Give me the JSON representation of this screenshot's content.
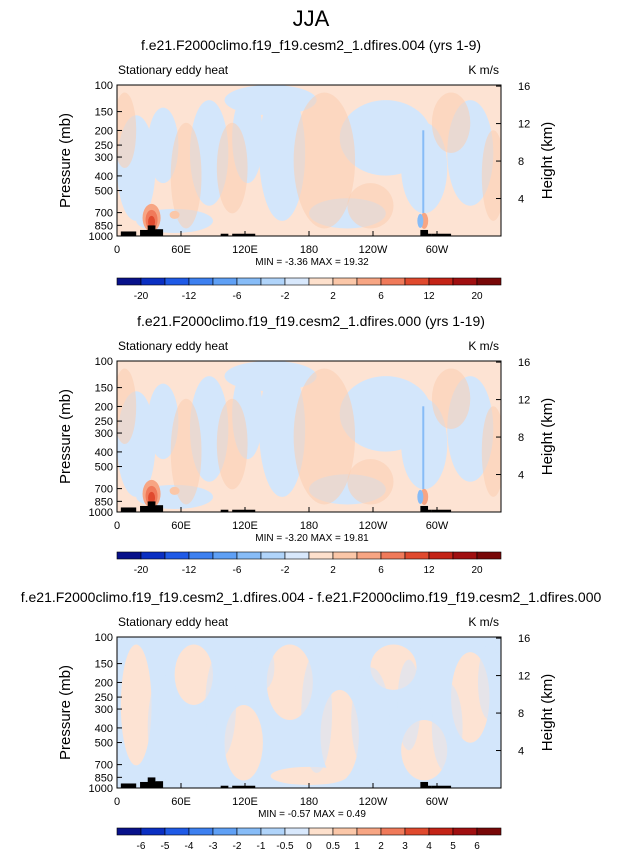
{
  "title": "JJA",
  "panels": [
    {
      "title": "f.e21.F2000climo.f19_f19.cesm2_1.dfires.004 (yrs 1-9)",
      "left_label": "Stationary eddy heat",
      "right_label": "K m/s",
      "stats": "MIN =  -3.36  MAX =  19.32",
      "colorbar_labels": [
        "-20",
        "-12",
        "-6",
        "-2",
        "2",
        "6",
        "12",
        "20"
      ],
      "colorbar_colors": [
        "#08118a",
        "#0a2fc2",
        "#1f5ae6",
        "#3d80f0",
        "#5fa0f5",
        "#87bcf7",
        "#b0d4fa",
        "#d8e8fc",
        "#fde0cc",
        "#fbc7a8",
        "#f7a583",
        "#f07a5a",
        "#e04a2e",
        "#c42417",
        "#a00f10",
        "#780808"
      ]
    },
    {
      "title": "f.e21.F2000climo.f19_f19.cesm2_1.dfires.000 (yrs 1-19)",
      "left_label": "Stationary eddy heat",
      "right_label": "K m/s",
      "stats": "MIN =  -3.20  MAX =  19.81",
      "colorbar_labels": [
        "-20",
        "-12",
        "-6",
        "-2",
        "2",
        "6",
        "12",
        "20"
      ],
      "colorbar_colors": [
        "#08118a",
        "#0a2fc2",
        "#1f5ae6",
        "#3d80f0",
        "#5fa0f5",
        "#87bcf7",
        "#b0d4fa",
        "#d8e8fc",
        "#fde0cc",
        "#fbc7a8",
        "#f7a583",
        "#f07a5a",
        "#e04a2e",
        "#c42417",
        "#a00f10",
        "#780808"
      ]
    },
    {
      "title": "f.e21.F2000climo.f19_f19.cesm2_1.dfires.004 - f.e21.F2000climo.f19_f19.cesm2_1.dfires.000",
      "left_label": "Stationary eddy heat",
      "right_label": "K m/s",
      "stats": "MIN =  -0.57  MAX =   0.49",
      "colorbar_labels": [
        "-6",
        "-5",
        "-4",
        "-3",
        "-2",
        "-1",
        "-0.5",
        "0",
        "0.5",
        "1",
        "2",
        "3",
        "4",
        "5",
        "6"
      ],
      "colorbar_colors": [
        "#08118a",
        "#0a2fc2",
        "#1f5ae6",
        "#3d80f0",
        "#5fa0f5",
        "#87bcf7",
        "#b0d4fa",
        "#d8e8fc",
        "#fde0cc",
        "#fbc7a8",
        "#f7a583",
        "#f07a5a",
        "#e04a2e",
        "#c42417",
        "#a00f10",
        "#780808"
      ]
    }
  ],
  "chart_data": [
    {
      "type": "heatmap",
      "title": "f.e21.F2000climo.f19_f19.cesm2_1.dfires.004 (yrs 1-9)",
      "ylabel": "Pressure (mb)",
      "y2label": "Height (km)",
      "x_ticks": [
        "0",
        "60E",
        "120E",
        "180",
        "120W",
        "60W"
      ],
      "y_ticks": [
        "100",
        "150",
        "200",
        "250",
        "300",
        "400",
        "500",
        "700",
        "850",
        "1000"
      ],
      "y2_ticks": [
        "16",
        "12",
        "8",
        "4"
      ],
      "ylim": [
        1000,
        100
      ],
      "min": -3.36,
      "max": 19.32,
      "units": "K m/s"
    },
    {
      "type": "heatmap",
      "title": "f.e21.F2000climo.f19_f19.cesm2_1.dfires.000 (yrs 1-19)",
      "ylabel": "Pressure (mb)",
      "y2label": "Height (km)",
      "x_ticks": [
        "0",
        "60E",
        "120E",
        "180",
        "120W",
        "60W"
      ],
      "y_ticks": [
        "100",
        "150",
        "200",
        "250",
        "300",
        "400",
        "500",
        "700",
        "850",
        "1000"
      ],
      "y2_ticks": [
        "16",
        "12",
        "8",
        "4"
      ],
      "ylim": [
        1000,
        100
      ],
      "min": -3.2,
      "max": 19.81,
      "units": "K m/s"
    },
    {
      "type": "heatmap",
      "title": "f.e21.F2000climo.f19_f19.cesm2_1.dfires.004 - f.e21.F2000climo.f19_f19.cesm2_1.dfires.000",
      "ylabel": "Pressure (mb)",
      "y2label": "Height (km)",
      "x_ticks": [
        "0",
        "60E",
        "120E",
        "180",
        "120W",
        "60W"
      ],
      "y_ticks": [
        "100",
        "150",
        "200",
        "250",
        "300",
        "400",
        "500",
        "700",
        "850",
        "1000"
      ],
      "y2_ticks": [
        "16",
        "12",
        "8",
        "4"
      ],
      "ylim": [
        1000,
        100
      ],
      "min": -0.57,
      "max": 0.49,
      "units": "K m/s"
    }
  ]
}
